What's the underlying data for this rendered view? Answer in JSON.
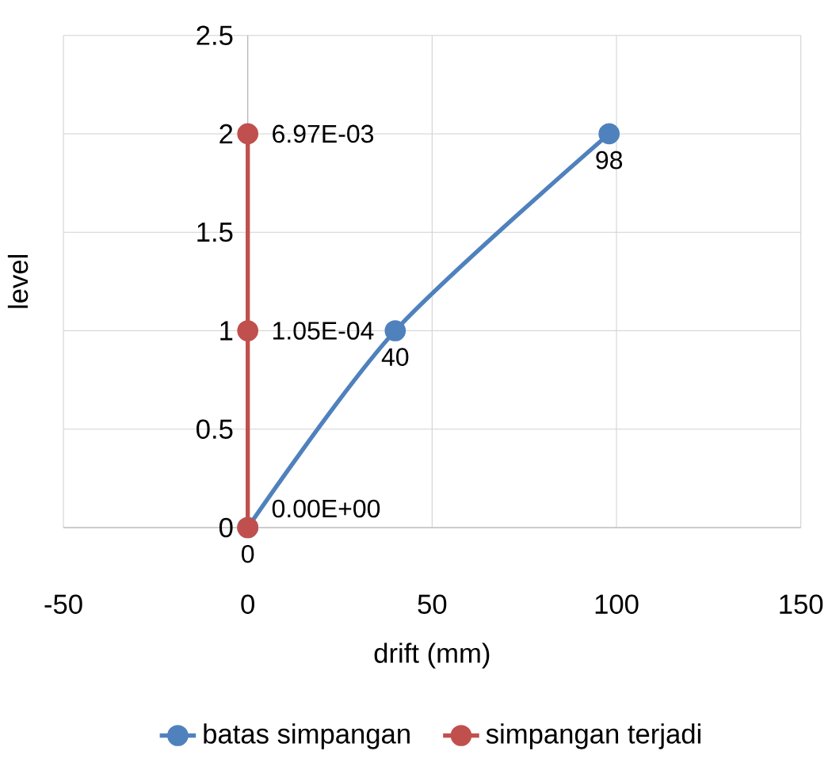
{
  "chart_data": {
    "type": "line",
    "xlabel": "drift (mm)",
    "ylabel": "level",
    "xlim": [
      -50,
      150
    ],
    "ylim": [
      0,
      2.5
    ],
    "xticks": [
      -50,
      0,
      50,
      100,
      150
    ],
    "yticks": [
      0,
      0.5,
      1,
      1.5,
      2,
      2.5
    ],
    "grid": true,
    "legend": "bottom",
    "marker": "circle",
    "line_style": "solid",
    "series": [
      {
        "name": "batas simpangan",
        "color": "#4f81bd",
        "x": [
          0,
          40,
          98
        ],
        "values": [
          0,
          1,
          2
        ]
      },
      {
        "name": "simpangan terjadi",
        "color": "#c0504d",
        "x": [
          0,
          0.000105,
          0.00697
        ],
        "values": [
          0,
          1,
          2
        ]
      }
    ],
    "annotations": [
      {
        "text": "0",
        "x": 0,
        "y": 0
      },
      {
        "text": "40",
        "x": 40,
        "y": 1
      },
      {
        "text": "98",
        "x": 98,
        "y": 2
      },
      {
        "text": "0.00E+00",
        "x": 0,
        "y": 0
      },
      {
        "text": "1.05E-04",
        "x": 0.000105,
        "y": 1
      },
      {
        "text": "6.97E-03",
        "x": 0.00697,
        "y": 2
      }
    ]
  }
}
